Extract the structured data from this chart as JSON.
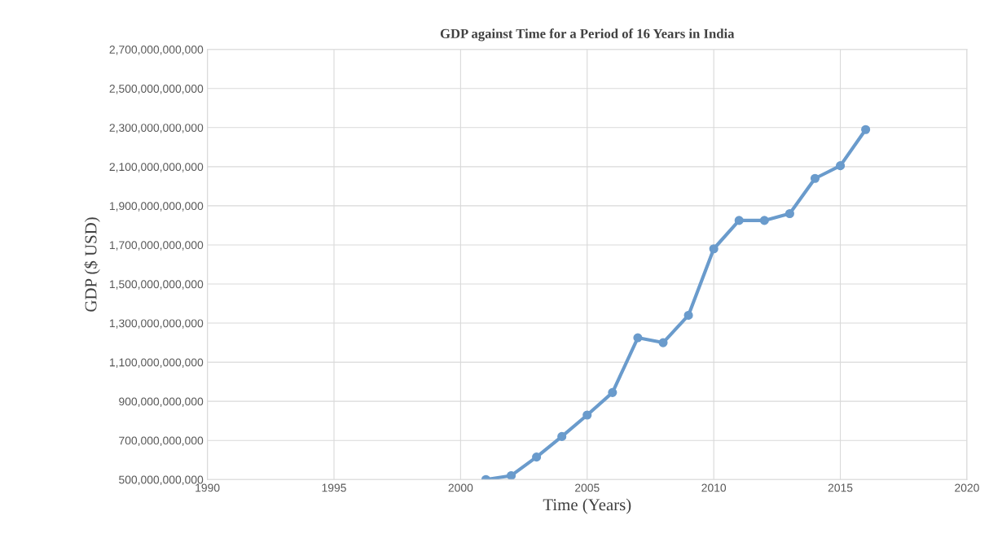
{
  "chart_data": {
    "type": "line",
    "title": "GDP against Time for a Period of 16 Years in India",
    "xlabel": "Time (Years)",
    "ylabel": "GDP ($ USD)",
    "x": [
      2001,
      2002,
      2003,
      2004,
      2005,
      2006,
      2007,
      2008,
      2009,
      2010,
      2011,
      2012,
      2013,
      2014,
      2015,
      2016
    ],
    "series": [
      {
        "color": "#6a9bcc",
        "values": [
          500000000000,
          520000000000,
          615000000000,
          720000000000,
          830000000000,
          945000000000,
          1225000000000,
          1200000000000,
          1340000000000,
          1680000000000,
          1825000000000,
          1825000000000,
          1860000000000,
          2040000000000,
          2105000000000,
          2290000000000
        ]
      }
    ],
    "xlim": [
      1990,
      2020
    ],
    "xticks": [
      1990,
      1995,
      2000,
      2005,
      2010,
      2015,
      2020
    ],
    "ylim": [
      500000000000,
      2700000000000
    ],
    "yticks": [
      {
        "value": 500000000000,
        "label": "500,000,000,000"
      },
      {
        "value": 700000000000,
        "label": "700,000,000,000"
      },
      {
        "value": 900000000000,
        "label": "900,000,000,000"
      },
      {
        "value": 1100000000000,
        "label": "1,100,000,000,000"
      },
      {
        "value": 1300000000000,
        "label": "1,300,000,000,000"
      },
      {
        "value": 1500000000000,
        "label": "1,500,000,000,000"
      },
      {
        "value": 1700000000000,
        "label": "1,700,000,000,000"
      },
      {
        "value": 1900000000000,
        "label": "1,900,000,000,000"
      },
      {
        "value": 2100000000000,
        "label": "2,100,000,000,000"
      },
      {
        "value": 2300000000000,
        "label": "2,300,000,000,000"
      },
      {
        "value": 2500000000000,
        "label": "2,500,000,000,000"
      },
      {
        "value": 2700000000000,
        "label": "2,700,000,000,000"
      }
    ],
    "grid": true,
    "marker": "circle",
    "line_style": "solid"
  }
}
